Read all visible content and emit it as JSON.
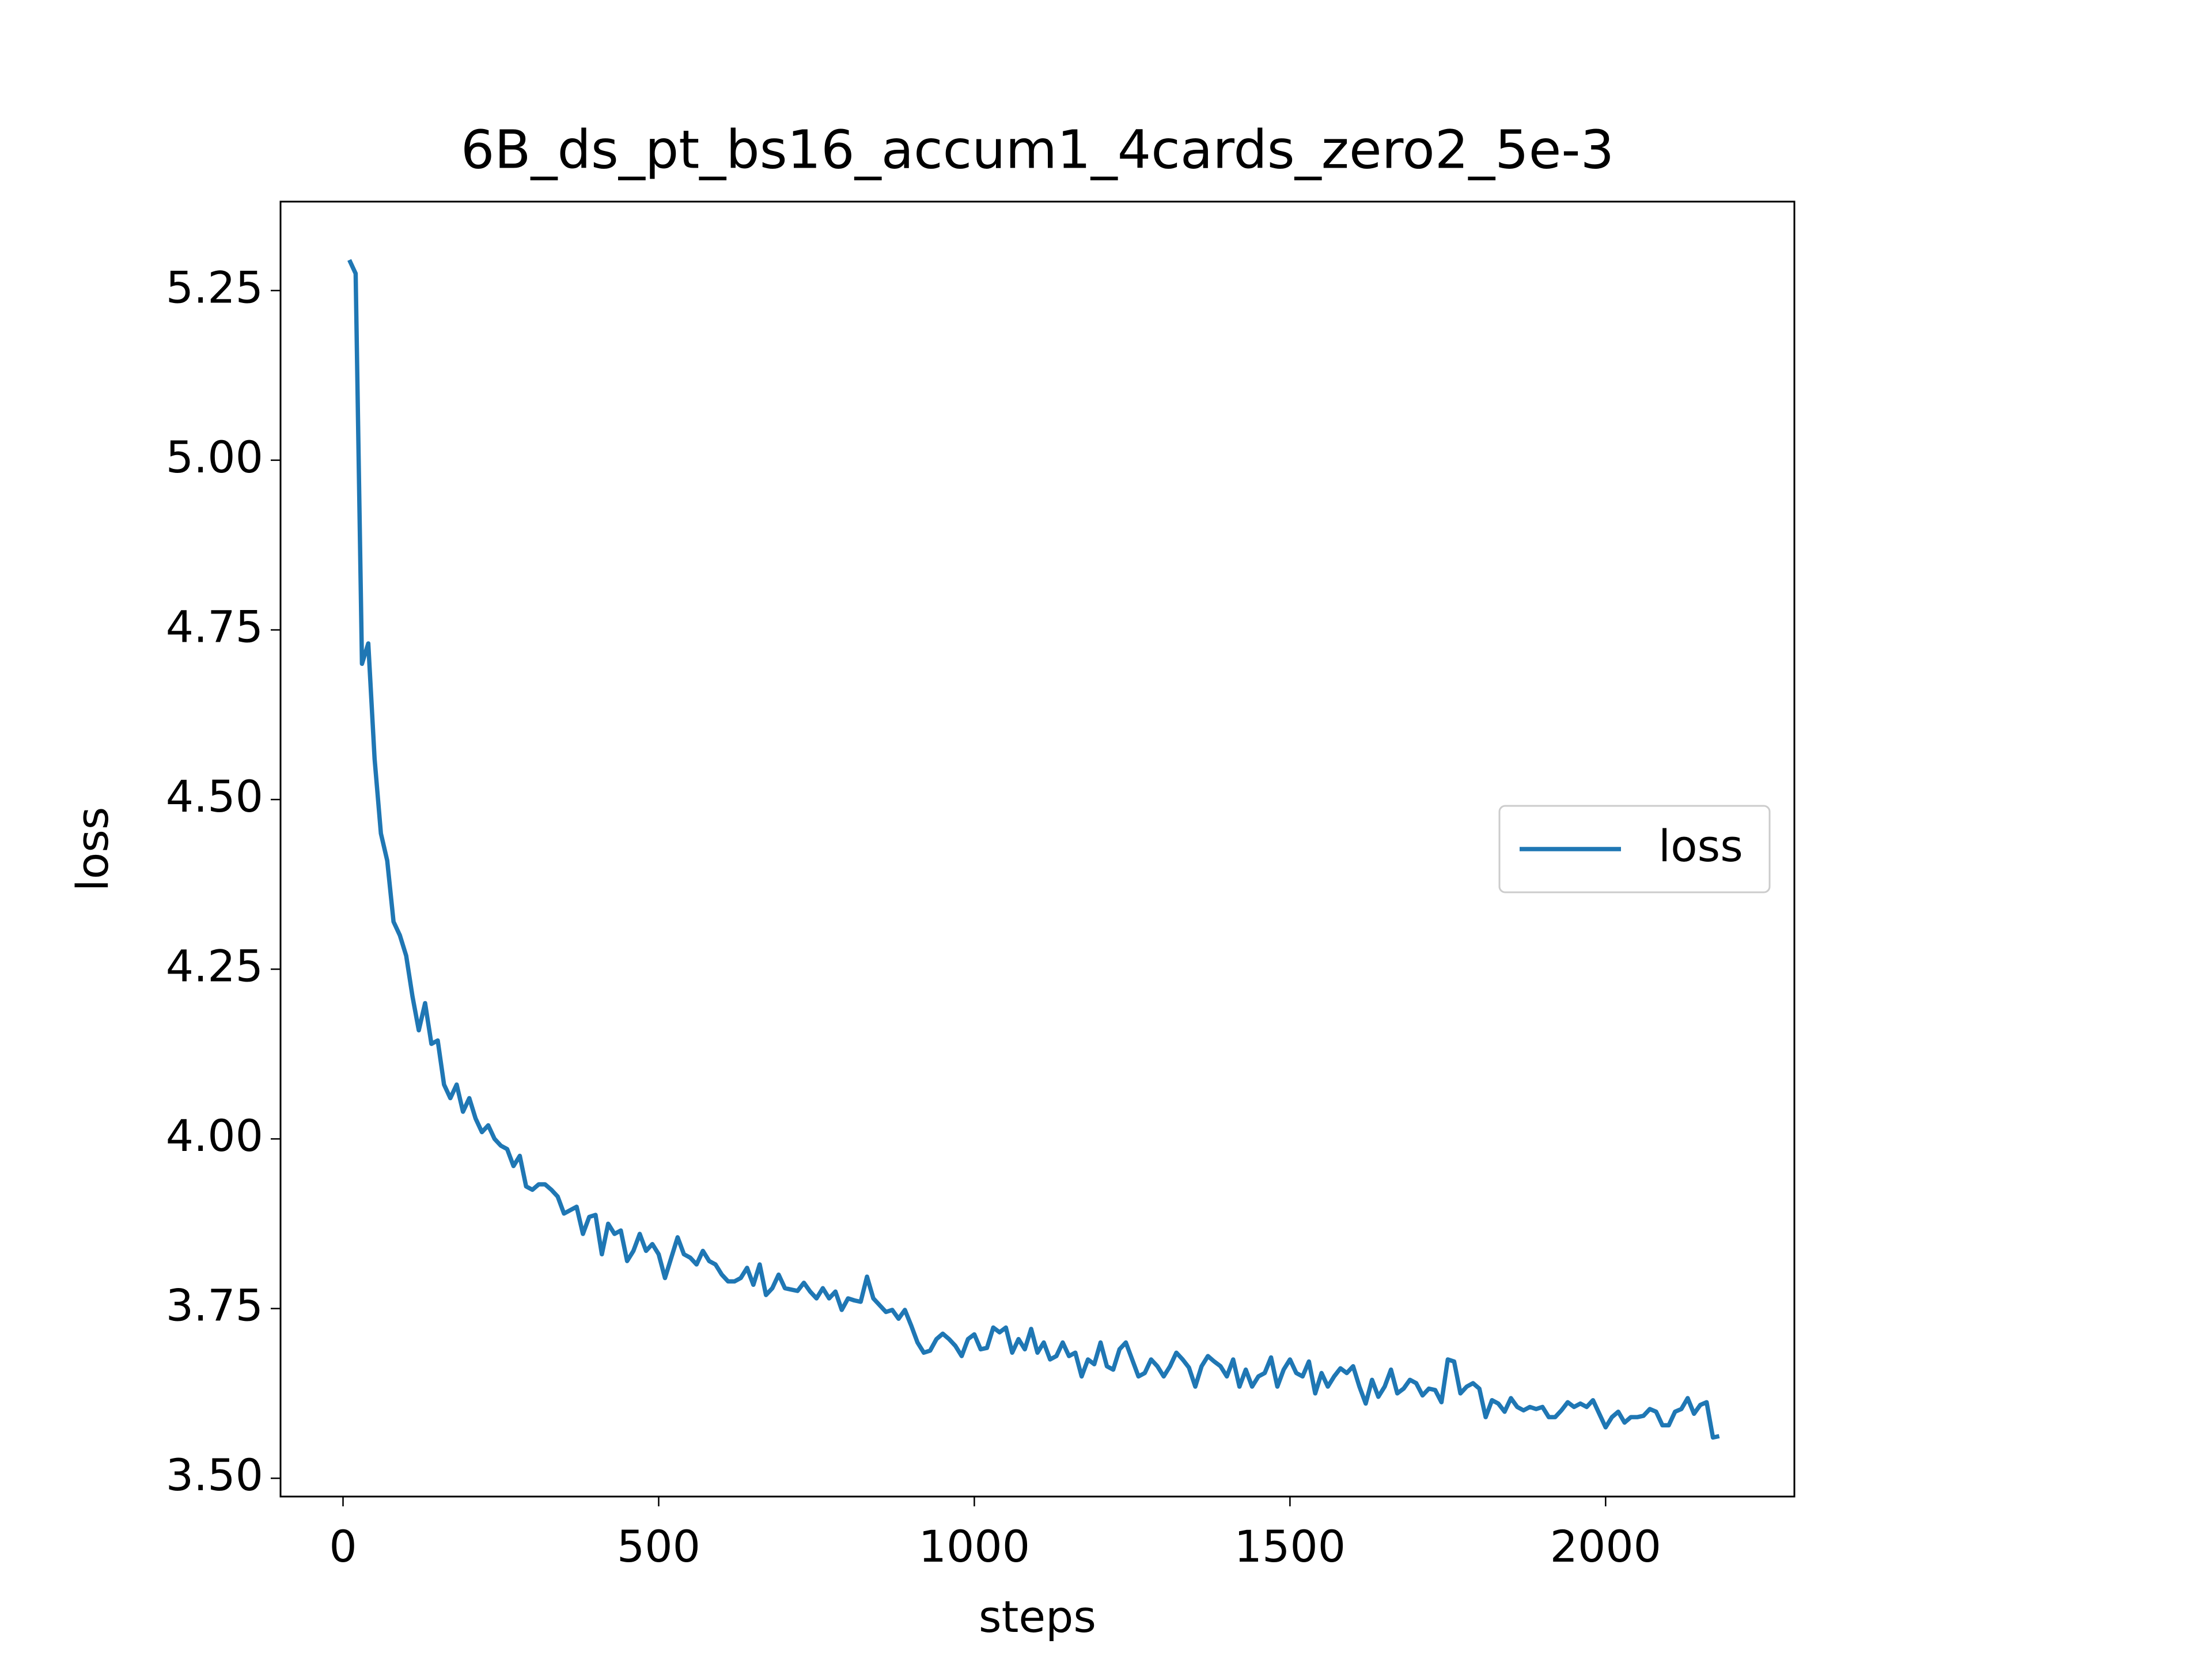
{
  "chart_data": {
    "type": "line",
    "title": "6B_ds_pt_bs16_accum1_4cards_zero2_5e-3",
    "xlabel": "steps",
    "ylabel": "loss",
    "ylabel_color": "#1f77b4",
    "xlim": [
      -99,
      2299
    ],
    "ylim": [
      3.473,
      5.381
    ],
    "xticks": [
      0,
      500,
      1000,
      1500,
      2000
    ],
    "yticks": [
      {
        "value": 3.5,
        "label": "3.50"
      },
      {
        "value": 3.75,
        "label": "3.75"
      },
      {
        "value": 4.0,
        "label": "4.00"
      },
      {
        "value": 4.25,
        "label": "4.25"
      },
      {
        "value": 4.5,
        "label": "4.50"
      },
      {
        "value": 4.75,
        "label": "4.75"
      },
      {
        "value": 5.0,
        "label": "5.00"
      },
      {
        "value": 5.25,
        "label": "5.25"
      }
    ],
    "grid": false,
    "legend": "center right",
    "x": [
      10,
      20,
      30,
      40,
      50,
      60,
      70,
      80,
      90,
      100,
      110,
      120,
      130,
      140,
      150,
      160,
      170,
      180,
      190,
      200,
      210,
      220,
      230,
      240,
      250,
      260,
      270,
      280,
      290,
      300,
      310,
      320,
      330,
      340,
      350,
      360,
      370,
      380,
      390,
      400,
      410,
      420,
      430,
      440,
      450,
      460,
      470,
      480,
      490,
      500,
      510,
      520,
      530,
      540,
      550,
      560,
      570,
      580,
      590,
      600,
      610,
      620,
      630,
      640,
      650,
      660,
      670,
      680,
      690,
      700,
      710,
      720,
      730,
      740,
      750,
      760,
      770,
      780,
      790,
      800,
      810,
      820,
      830,
      840,
      850,
      860,
      870,
      880,
      890,
      900,
      910,
      920,
      930,
      940,
      950,
      960,
      970,
      980,
      990,
      1000,
      1010,
      1020,
      1030,
      1040,
      1050,
      1060,
      1070,
      1080,
      1090,
      1100,
      1110,
      1120,
      1130,
      1140,
      1150,
      1160,
      1170,
      1180,
      1190,
      1200,
      1210,
      1220,
      1230,
      1240,
      1250,
      1260,
      1270,
      1280,
      1290,
      1300,
      1310,
      1320,
      1330,
      1340,
      1350,
      1360,
      1370,
      1380,
      1390,
      1400,
      1410,
      1420,
      1430,
      1440,
      1450,
      1460,
      1470,
      1480,
      1490,
      1500,
      1510,
      1520,
      1530,
      1540,
      1550,
      1560,
      1570,
      1580,
      1590,
      1600,
      1610,
      1620,
      1630,
      1640,
      1650,
      1660,
      1670,
      1680,
      1690,
      1700,
      1710,
      1720,
      1730,
      1740,
      1750,
      1760,
      1770,
      1780,
      1790,
      1800,
      1810,
      1820,
      1830,
      1840,
      1850,
      1860,
      1870,
      1880,
      1890,
      1900,
      1910,
      1920,
      1930,
      1940,
      1950,
      1960,
      1970,
      1980,
      1990,
      2000,
      2010,
      2020,
      2030,
      2040,
      2050,
      2060,
      2070,
      2080,
      2090,
      2100,
      2110,
      2120,
      2130,
      2140,
      2150,
      2160,
      2170,
      2180
    ],
    "series": [
      {
        "name": "loss",
        "color": "#1f77b4",
        "values": [
          5.295,
          5.275,
          4.7,
          4.73,
          4.56,
          4.45,
          4.41,
          4.32,
          4.3,
          4.27,
          4.21,
          4.16,
          4.2,
          4.14,
          4.145,
          4.08,
          4.06,
          4.08,
          4.04,
          4.06,
          4.03,
          4.01,
          4.02,
          4.0,
          3.99,
          3.985,
          3.96,
          3.975,
          3.93,
          3.925,
          3.933,
          3.933,
          3.925,
          3.915,
          3.89,
          3.895,
          3.9,
          3.86,
          3.885,
          3.888,
          3.83,
          3.875,
          3.86,
          3.865,
          3.82,
          3.835,
          3.86,
          3.835,
          3.845,
          3.83,
          3.795,
          3.825,
          3.855,
          3.83,
          3.825,
          3.815,
          3.835,
          3.82,
          3.815,
          3.8,
          3.79,
          3.79,
          3.795,
          3.81,
          3.785,
          3.815,
          3.77,
          3.78,
          3.8,
          3.78,
          3.778,
          3.776,
          3.788,
          3.775,
          3.765,
          3.78,
          3.765,
          3.775,
          3.748,
          3.765,
          3.762,
          3.76,
          3.797,
          3.765,
          3.755,
          3.745,
          3.748,
          3.735,
          3.748,
          3.725,
          3.7,
          3.685,
          3.688,
          3.705,
          3.713,
          3.705,
          3.695,
          3.68,
          3.705,
          3.712,
          3.69,
          3.692,
          3.722,
          3.715,
          3.722,
          3.685,
          3.705,
          3.69,
          3.72,
          3.685,
          3.7,
          3.675,
          3.68,
          3.7,
          3.68,
          3.685,
          3.65,
          3.675,
          3.668,
          3.7,
          3.665,
          3.66,
          3.69,
          3.7,
          3.675,
          3.65,
          3.655,
          3.675,
          3.665,
          3.65,
          3.665,
          3.685,
          3.675,
          3.663,
          3.635,
          3.665,
          3.68,
          3.672,
          3.665,
          3.65,
          3.675,
          3.635,
          3.66,
          3.635,
          3.65,
          3.655,
          3.678,
          3.635,
          3.66,
          3.675,
          3.655,
          3.65,
          3.672,
          3.625,
          3.655,
          3.635,
          3.65,
          3.662,
          3.655,
          3.665,
          3.635,
          3.61,
          3.645,
          3.62,
          3.635,
          3.66,
          3.625,
          3.632,
          3.645,
          3.64,
          3.622,
          3.632,
          3.63,
          3.612,
          3.675,
          3.672,
          3.625,
          3.635,
          3.64,
          3.632,
          3.59,
          3.615,
          3.61,
          3.598,
          3.618,
          3.605,
          3.6,
          3.605,
          3.602,
          3.605,
          3.59,
          3.59,
          3.6,
          3.612,
          3.605,
          3.61,
          3.605,
          3.615,
          3.595,
          3.575,
          3.59,
          3.598,
          3.582,
          3.59,
          3.59,
          3.592,
          3.602,
          3.598,
          3.578,
          3.578,
          3.598,
          3.602,
          3.618,
          3.595,
          3.608,
          3.612,
          3.56,
          3.562
        ]
      }
    ]
  }
}
